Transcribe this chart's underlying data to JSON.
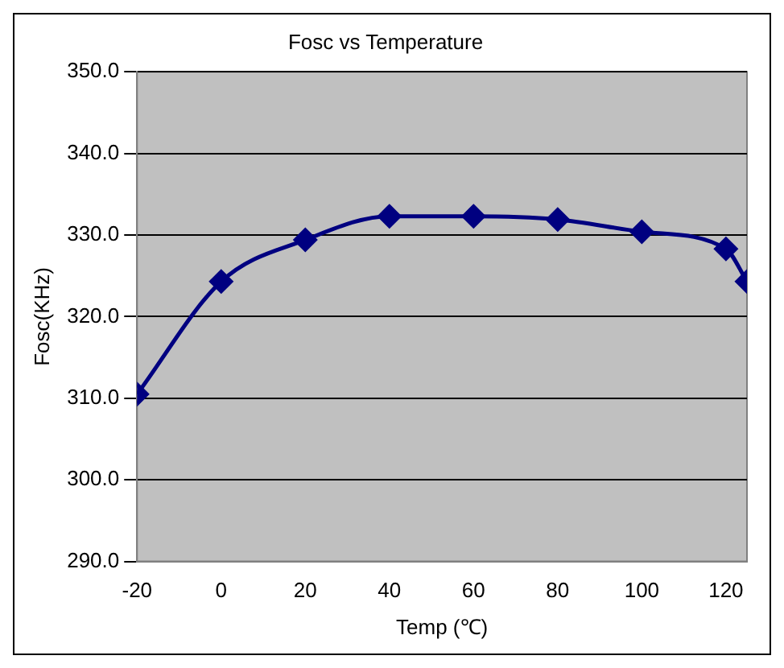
{
  "chart_data": {
    "type": "line",
    "title": "Fosc vs Temperature",
    "xlabel": "Temp (℃)",
    "ylabel": "Fosc(KHz)",
    "x": [
      -20,
      0,
      20,
      40,
      60,
      80,
      100,
      120,
      125
    ],
    "series": [
      {
        "color": "#000080",
        "values": [
          310.5,
          324.3,
          329.4,
          332.3,
          332.3,
          331.9,
          330.4,
          328.3,
          324.3
        ]
      }
    ],
    "xlim": [
      -20,
      125
    ],
    "xticks": [
      -20,
      0,
      20,
      40,
      60,
      80,
      100,
      120
    ],
    "ylim": [
      290,
      350
    ],
    "yticks": [
      {
        "value": 290,
        "label": "290.0"
      },
      {
        "value": 300,
        "label": "300.0"
      },
      {
        "value": 310,
        "label": "310.0"
      },
      {
        "value": 320,
        "label": "320.0"
      },
      {
        "value": 330,
        "label": "330.0"
      },
      {
        "value": 340,
        "label": "340.0"
      },
      {
        "value": 350,
        "label": "350.0"
      }
    ],
    "grid": "y",
    "legend": false,
    "marker": "diamond",
    "line_style": "solid"
  }
}
